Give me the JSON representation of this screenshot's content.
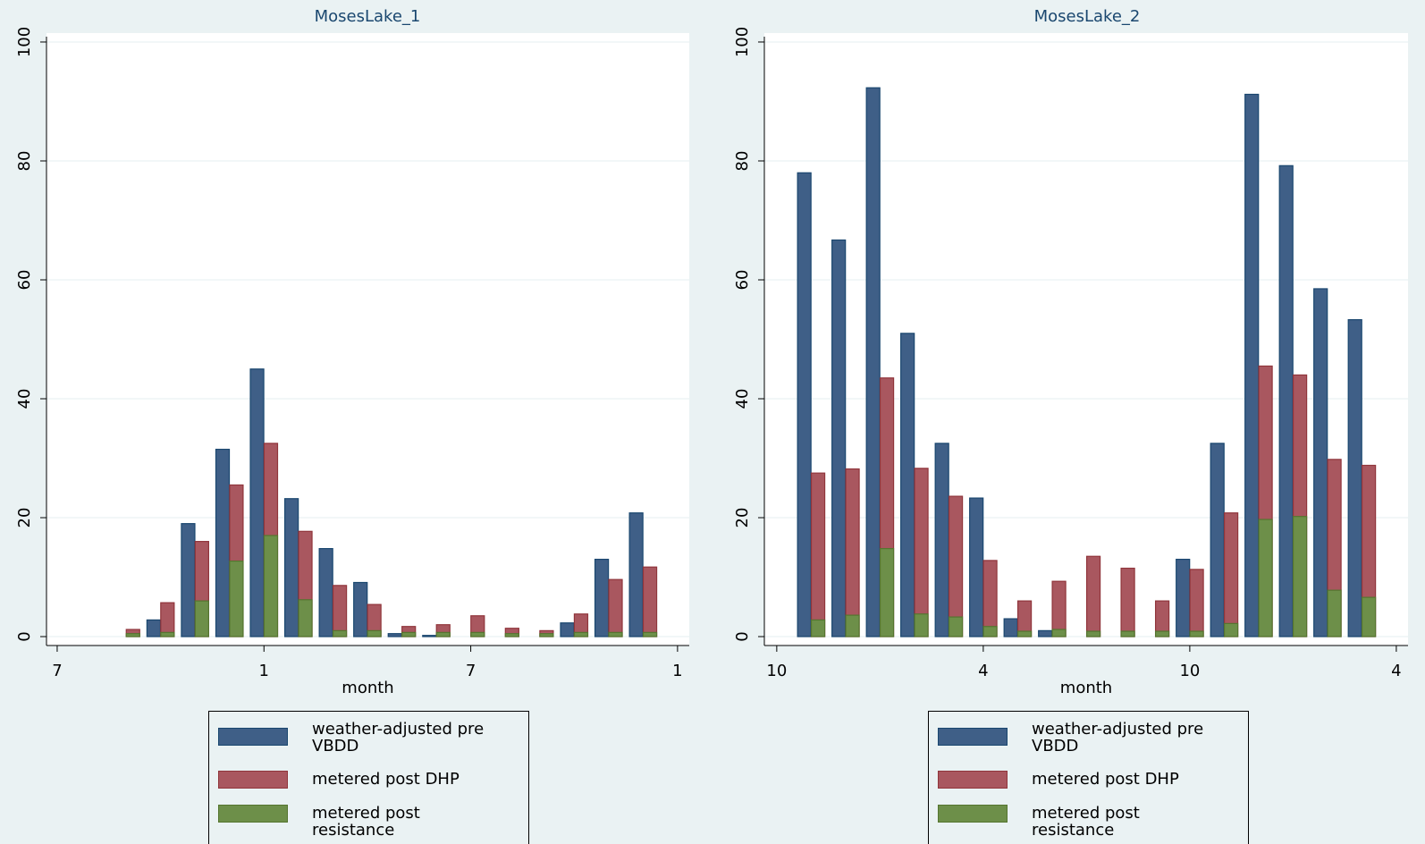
{
  "chart_data": [
    {
      "type": "bar",
      "title": "MosesLake_1",
      "x_label": "month",
      "x": [
        2,
        3,
        4,
        5,
        6,
        7,
        8,
        9,
        10,
        11,
        12,
        13,
        14,
        15,
        16,
        17
      ],
      "series": [
        {
          "name": "weather-adjusted pre VBDD",
          "color": "#3f5f87",
          "values": [
            0,
            2.8,
            19,
            31.5,
            45,
            23.2,
            14.8,
            9.1,
            0.5,
            0.2,
            0,
            0,
            0,
            2.3,
            13,
            20.8
          ]
        },
        {
          "name": "metered post DHP",
          "color": "#a9575f",
          "values": [
            1.2,
            5.7,
            16,
            25.5,
            32.5,
            17.7,
            8.6,
            5.4,
            1.7,
            2,
            3.5,
            1.4,
            1,
            3.8,
            9.6,
            11.7
          ]
        },
        {
          "name": "metered post resistance",
          "color": "#6d8f49",
          "values": [
            0.5,
            0.7,
            6,
            12.7,
            17,
            6.2,
            1,
            1,
            0.7,
            0.7,
            0.7,
            0.5,
            0.5,
            0.7,
            0.7,
            0.7
          ]
        }
      ],
      "xlim": [
        -0.31,
        18.34
      ],
      "xticks": [
        {
          "value": 0,
          "label": "7"
        },
        {
          "value": 6,
          "label": "1"
        },
        {
          "value": 12,
          "label": "7"
        },
        {
          "value": 18,
          "label": "1"
        }
      ],
      "ylim": [
        -1.5,
        101.5
      ],
      "yticks": [
        0,
        20,
        40,
        60,
        80,
        100
      ],
      "grid": true,
      "legend": "bottom"
    },
    {
      "type": "bar",
      "title": "MosesLake_2",
      "x_label": "month",
      "x": [
        1,
        2,
        3,
        4,
        5,
        6,
        7,
        8,
        9,
        10,
        11,
        12,
        13,
        14,
        15,
        16,
        17
      ],
      "series": [
        {
          "name": "weather-adjusted pre VBDD",
          "color": "#3f5f87",
          "values": [
            78,
            66.7,
            92.3,
            51,
            32.5,
            23.3,
            3,
            1,
            0,
            0,
            0,
            13,
            32.5,
            91.2,
            79.2,
            58.5,
            53.3
          ]
        },
        {
          "name": "metered post DHP",
          "color": "#a9575f",
          "values": [
            27.5,
            28.2,
            43.5,
            28.3,
            23.6,
            12.8,
            6,
            9.3,
            13.5,
            11.5,
            6,
            11.3,
            20.8,
            45.5,
            44,
            29.8,
            28.8
          ]
        },
        {
          "name": "metered post resistance",
          "color": "#6d8f49",
          "values": [
            2.8,
            3.6,
            14.8,
            3.8,
            3.3,
            1.7,
            0.9,
            1.2,
            0.9,
            0.9,
            0.9,
            0.9,
            2.2,
            19.7,
            20.2,
            7.8,
            6.6
          ]
        }
      ],
      "xlim": [
        -0.36,
        18.34
      ],
      "xticks": [
        {
          "value": 0,
          "label": "10"
        },
        {
          "value": 6,
          "label": "4"
        },
        {
          "value": 12,
          "label": "10"
        },
        {
          "value": 18,
          "label": "4"
        }
      ],
      "ylim": [
        -1.5,
        101.5
      ],
      "yticks": [
        0,
        20,
        40,
        60,
        80,
        100
      ],
      "grid": true,
      "legend": "bottom"
    }
  ]
}
